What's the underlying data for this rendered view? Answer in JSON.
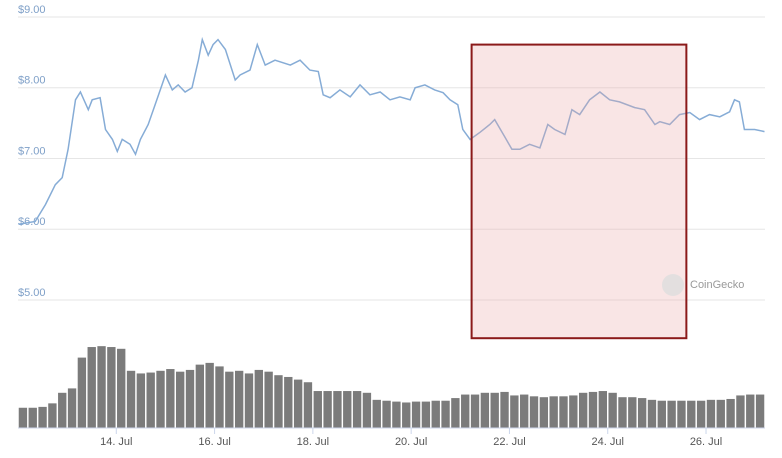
{
  "chart_data": {
    "type": "line",
    "color": "#86acd6",
    "x": [
      12.01,
      12.35,
      12.56,
      12.76,
      12.9,
      13.02,
      13.17,
      13.27,
      13.43,
      13.51,
      13.67,
      13.78,
      13.92,
      14.02,
      14.12,
      14.28,
      14.39,
      14.49,
      14.65,
      14.79,
      14.93,
      15.0,
      15.14,
      15.26,
      15.4,
      15.54,
      15.67,
      15.75,
      15.87,
      15.97,
      16.07,
      16.22,
      16.42,
      16.52,
      16.72,
      16.87,
      17.03,
      17.23,
      17.54,
      17.74,
      17.94,
      18.11,
      18.21,
      18.35,
      18.55,
      18.76,
      18.96,
      19.16,
      19.37,
      19.57,
      19.77,
      19.98,
      20.08,
      20.28,
      20.48,
      20.65,
      20.79,
      20.95,
      21.05,
      21.2,
      21.4,
      21.6,
      21.7,
      21.91,
      22.05,
      22.21,
      22.41,
      22.62,
      22.78,
      22.92,
      23.13,
      23.27,
      23.43,
      23.63,
      23.84,
      24.04,
      24.24,
      24.55,
      24.75,
      24.96,
      25.06,
      25.26,
      25.46,
      25.67,
      25.87,
      26.07,
      26.28,
      26.48,
      26.58,
      26.68,
      26.78,
      26.99,
      27.19
    ],
    "values": [
      6.07,
      6.11,
      6.35,
      6.63,
      6.73,
      7.13,
      7.83,
      7.94,
      7.69,
      7.83,
      7.86,
      7.41,
      7.27,
      7.1,
      7.27,
      7.2,
      7.06,
      7.27,
      7.48,
      7.76,
      8.04,
      8.18,
      7.97,
      8.04,
      7.94,
      8.0,
      8.39,
      8.68,
      8.46,
      8.61,
      8.68,
      8.54,
      8.11,
      8.18,
      8.25,
      8.61,
      8.32,
      8.39,
      8.32,
      8.39,
      8.25,
      8.23,
      7.9,
      7.86,
      7.97,
      7.87,
      8.04,
      7.9,
      7.94,
      7.83,
      7.87,
      7.83,
      8.0,
      8.04,
      7.97,
      7.93,
      7.83,
      7.76,
      7.41,
      7.27,
      7.37,
      7.48,
      7.55,
      7.3,
      7.13,
      7.13,
      7.2,
      7.15,
      7.48,
      7.41,
      7.34,
      7.69,
      7.62,
      7.83,
      7.94,
      7.83,
      7.8,
      7.72,
      7.69,
      7.48,
      7.52,
      7.48,
      7.62,
      7.65,
      7.55,
      7.62,
      7.59,
      7.66,
      7.83,
      7.8,
      7.41,
      7.41,
      7.38
    ],
    "volume": {
      "type": "bar",
      "axis": "y2",
      "color": "#7b7b7b",
      "x": [
        12.1,
        12.3,
        12.5,
        12.7,
        12.9,
        13.1,
        13.3,
        13.5,
        13.7,
        13.9,
        14.1,
        14.3,
        14.5,
        14.7,
        14.9,
        15.1,
        15.3,
        15.5,
        15.7,
        15.9,
        16.1,
        16.3,
        16.5,
        16.7,
        16.9,
        17.1,
        17.3,
        17.5,
        17.7,
        17.9,
        18.1,
        18.3,
        18.5,
        18.7,
        18.9,
        19.1,
        19.3,
        19.5,
        19.7,
        19.9,
        20.1,
        20.3,
        20.5,
        20.7,
        20.9,
        21.1,
        21.3,
        21.5,
        21.7,
        21.9,
        22.1,
        22.3,
        22.5,
        22.7,
        22.9,
        23.1,
        23.3,
        23.5,
        23.7,
        23.9,
        24.1,
        24.3,
        24.5,
        24.7,
        24.9,
        25.1,
        25.3,
        25.5,
        25.7,
        25.9,
        26.1,
        26.3,
        26.5,
        26.7,
        26.9,
        27.1
      ],
      "values": [
        23,
        23,
        24,
        28,
        40,
        45,
        80,
        92,
        93,
        92,
        90,
        65,
        62,
        63,
        65,
        67,
        64,
        66,
        72,
        74,
        70,
        64,
        65,
        62,
        66,
        64,
        60,
        58,
        55,
        52,
        42,
        42,
        42,
        42,
        42,
        40,
        32,
        31,
        30,
        29,
        30,
        30,
        31,
        31,
        34,
        38,
        38,
        40,
        40,
        41,
        37,
        38,
        36,
        35,
        36,
        36,
        37,
        40,
        41,
        42,
        40,
        35,
        35,
        34,
        32,
        31,
        31,
        31,
        31,
        31,
        32,
        32,
        33,
        37,
        38,
        38
      ]
    },
    "xlim": [
      12.0,
      27.2
    ],
    "xticks": [
      {
        "value": 14,
        "label": "14. Jul"
      },
      {
        "value": 16,
        "label": "16. Jul"
      },
      {
        "value": 18,
        "label": "18. Jul"
      },
      {
        "value": 20,
        "label": "20. Jul"
      },
      {
        "value": 22,
        "label": "22. Jul"
      },
      {
        "value": 24,
        "label": "24. Jul"
      },
      {
        "value": 26,
        "label": "26. Jul"
      }
    ],
    "ylim": [
      5,
      9
    ],
    "yticks": [
      {
        "value": 5,
        "label": "$5.00"
      },
      {
        "value": 6,
        "label": "$6.00"
      },
      {
        "value": 7,
        "label": "$7.00"
      },
      {
        "value": 8,
        "label": "$8.00"
      },
      {
        "value": 9,
        "label": "$9.00"
      }
    ],
    "y2lim": [
      0,
      100
    ],
    "grid": true,
    "highlight": {
      "x": [
        21.23,
        25.6
      ],
      "y": [
        8.61,
        4.46
      ],
      "color": "#8b1a1a"
    },
    "watermark": "CoinGecko"
  }
}
